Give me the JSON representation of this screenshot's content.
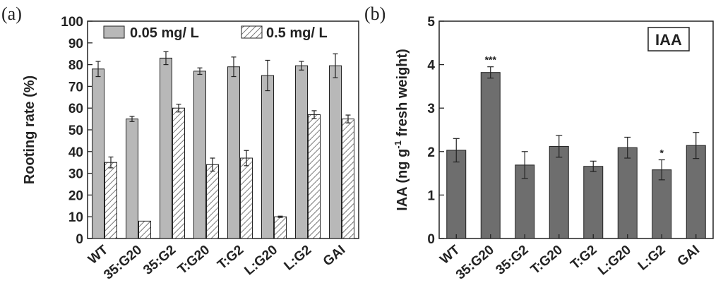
{
  "panel_labels": {
    "a": "(a)",
    "b": "(b)"
  },
  "colors": {
    "bar_a": "#b8b8b8",
    "bar_b": "#6e6e6e",
    "axis": "#222222",
    "hatch": "#555555"
  },
  "chart_data": [
    {
      "type": "bar",
      "panel": "(a)",
      "categories": [
        "WT",
        "35:G20",
        "35:G2",
        "T:G20",
        "T:G2",
        "L:G20",
        "L:G2",
        "GAI"
      ],
      "series": [
        {
          "name": "0.05 mg/ L",
          "pattern": "solid",
          "values": [
            78,
            55,
            83,
            77,
            79,
            75,
            79.5,
            79.5
          ],
          "errors": [
            3.5,
            1.2,
            3,
            1.5,
            4.5,
            7,
            2,
            5.5
          ]
        },
        {
          "name": "0.5 mg/ L",
          "pattern": "hatched",
          "values": [
            35,
            8,
            60,
            34,
            37,
            10,
            57,
            55
          ],
          "errors": [
            2.5,
            0,
            1.8,
            3,
            3.5,
            0.3,
            1.8,
            1.8
          ]
        }
      ],
      "xlabel": "",
      "ylabel": "Rooting rate (%)",
      "ylim": [
        0,
        100
      ],
      "yticks": [
        "0",
        "10",
        "20",
        "30",
        "40",
        "50",
        "60",
        "70",
        "80",
        "90",
        "100"
      ],
      "legend": "top"
    },
    {
      "type": "bar",
      "panel": "(b)",
      "categories": [
        "WT",
        "35:G20",
        "35:G2",
        "T:G20",
        "T:G2",
        "L:G20",
        "L:G2",
        "GAI"
      ],
      "series": [
        {
          "name": "IAA",
          "values": [
            2.03,
            3.82,
            1.69,
            2.12,
            1.66,
            2.09,
            1.58,
            2.14
          ],
          "errors": [
            0.27,
            0.13,
            0.31,
            0.25,
            0.12,
            0.24,
            0.23,
            0.3
          ]
        }
      ],
      "annotations": [
        "",
        "***",
        "",
        "",
        "",
        "",
        "*",
        ""
      ],
      "ylabel_parts": [
        "IAA (ng g",
        "-1",
        " fresh weight)"
      ],
      "ylim": [
        0,
        5
      ],
      "yticks": [
        "0",
        "1",
        "2",
        "3",
        "4",
        "5"
      ],
      "inset_label": "IAA"
    }
  ]
}
